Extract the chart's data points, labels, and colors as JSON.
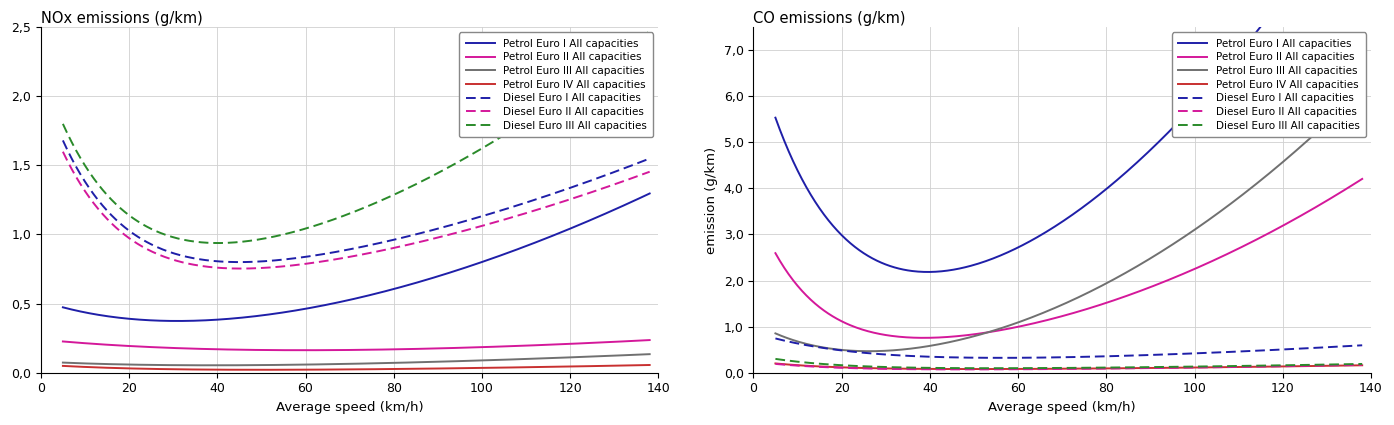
{
  "nox_title": "NOx emissions (g/km)",
  "co_title": "CO emissions (g/km)",
  "xlabel": "Average speed (km/h)",
  "co_ylabel": "emission (g/km)",
  "xlim": [
    0,
    140
  ],
  "nox_ylim": [
    0.0,
    2.5
  ],
  "co_ylim": [
    0.0,
    7.5
  ],
  "nox_yticks": [
    0.0,
    0.5,
    1.0,
    1.5,
    2.0,
    2.5
  ],
  "co_yticks": [
    0.0,
    1.0,
    2.0,
    3.0,
    4.0,
    5.0,
    6.0,
    7.0
  ],
  "legend_entries": [
    "Petrol Euro I All capacities",
    "Petrol Euro II All capacities",
    "Petrol Euro III All capacities",
    "Petrol Euro IV All capacities",
    "Diesel Euro I All capacities",
    "Diesel Euro II All capacities",
    "Diesel Euro III All capacities"
  ],
  "colors": {
    "petrol_euro1": "#1f1fa8",
    "petrol_euro2": "#d4189a",
    "petrol_euro3": "#707070",
    "petrol_euro4": "#c83030",
    "diesel_euro1": "#1f1fa8",
    "diesel_euro2": "#d4189a",
    "diesel_euro3": "#2a8a2a"
  }
}
